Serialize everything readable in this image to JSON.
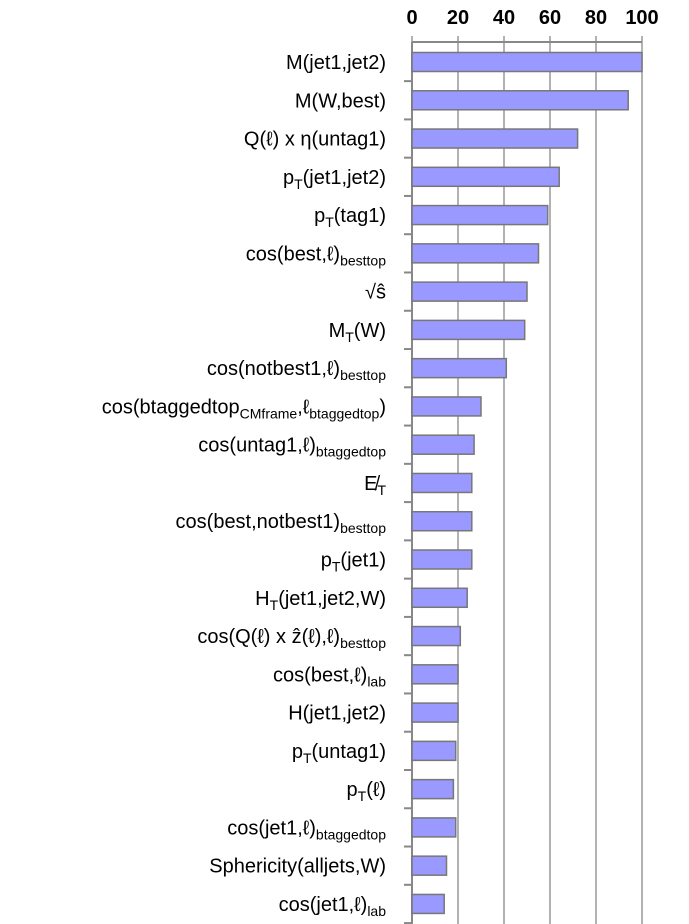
{
  "chart_data": {
    "type": "barh",
    "categories": [
      [
        "M(jet1,jet2)"
      ],
      [
        "M(W,best)"
      ],
      [
        "Q(ℓ) x η(untag1)"
      ],
      [
        "p",
        "T",
        "(jet1,jet2)"
      ],
      [
        "p",
        "T",
        "(tag1)"
      ],
      [
        "cos(best,ℓ)",
        "besttop"
      ],
      [
        "√ŝ"
      ],
      [
        "M",
        "T",
        "(W)"
      ],
      [
        "cos(notbest1,ℓ)",
        "besttop"
      ],
      [
        "cos(btaggedtop",
        "CMframe",
        ",ℓ",
        "btaggedtop",
        ")"
      ],
      [
        "cos(untag1,ℓ)",
        "btaggedtop"
      ],
      [
        "E̸",
        "T"
      ],
      [
        "cos(best,notbest1)",
        "besttop"
      ],
      [
        "p",
        "T",
        "(jet1)"
      ],
      [
        "H",
        "T",
        "(jet1,jet2,W)"
      ],
      [
        "cos(Q(ℓ) x ẑ(ℓ),ℓ)",
        "besttop"
      ],
      [
        "cos(best,ℓ)",
        "lab"
      ],
      [
        "H(jet1,jet2)"
      ],
      [
        "p",
        "T",
        "(untag1)"
      ],
      [
        "p",
        "T",
        "(ℓ)"
      ],
      [
        "cos(jet1,ℓ)",
        "btaggedtop"
      ],
      [
        "Sphericity(alljets,W)"
      ],
      [
        "cos(jet1,ℓ)",
        "lab"
      ]
    ],
    "values": [
      100,
      94,
      72,
      64,
      59,
      55,
      50,
      49,
      41,
      30,
      27,
      26,
      26,
      26,
      24,
      21,
      20,
      20,
      19,
      18,
      19,
      15,
      14
    ],
    "color": "#9999ff",
    "xlim": [
      0,
      100
    ],
    "xticks": [
      0,
      20,
      40,
      60,
      80,
      100
    ],
    "grid": true
  }
}
